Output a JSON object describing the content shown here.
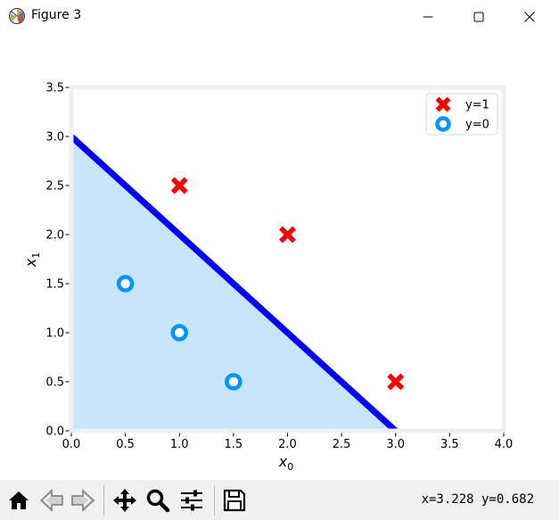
{
  "window": {
    "title": "Figure 3",
    "app_icon": "matplotlib-icon",
    "controls": [
      "minimize-icon",
      "maximize-icon",
      "close-icon"
    ]
  },
  "toolbar": {
    "buttons": [
      "home-icon",
      "back-icon",
      "forward-icon",
      "pan-icon",
      "zoom-icon",
      "configure-subplots-icon",
      "save-icon"
    ],
    "coordinates": "x=3.228 y=0.682"
  },
  "chart_data": {
    "type": "scatter",
    "title": "",
    "xlabel": "x",
    "xlabel_subscript": "0",
    "ylabel": "x",
    "ylabel_subscript": "1",
    "xlim": [
      0,
      4
    ],
    "ylim": [
      0,
      3.5
    ],
    "xticks": [
      "0.0",
      "0.5",
      "1.0",
      "1.5",
      "2.0",
      "2.5",
      "3.0",
      "3.5",
      "4.0"
    ],
    "yticks": [
      "0.0",
      "0.5",
      "1.0",
      "1.5",
      "2.0",
      "2.5",
      "3.0",
      "3.5"
    ],
    "grid": false,
    "legend": "top-right",
    "series": [
      {
        "name": "y=1",
        "marker": "x",
        "color": "#ff0000",
        "x": [
          1,
          2,
          3
        ],
        "y": [
          2.5,
          2,
          0.5
        ]
      },
      {
        "name": "y=0",
        "marker": "o",
        "color": "#0096ff",
        "x": [
          0.5,
          1,
          1.5
        ],
        "y": [
          1.5,
          1,
          0.5
        ]
      }
    ],
    "decision_boundary": {
      "x": [
        0,
        3
      ],
      "y": [
        3,
        0
      ],
      "color": "#0000ff"
    },
    "fill_region": {
      "x": [
        0,
        3
      ],
      "y_top": [
        3,
        0
      ],
      "color": "#c7e6fb"
    },
    "frame_color": "#efefef"
  }
}
